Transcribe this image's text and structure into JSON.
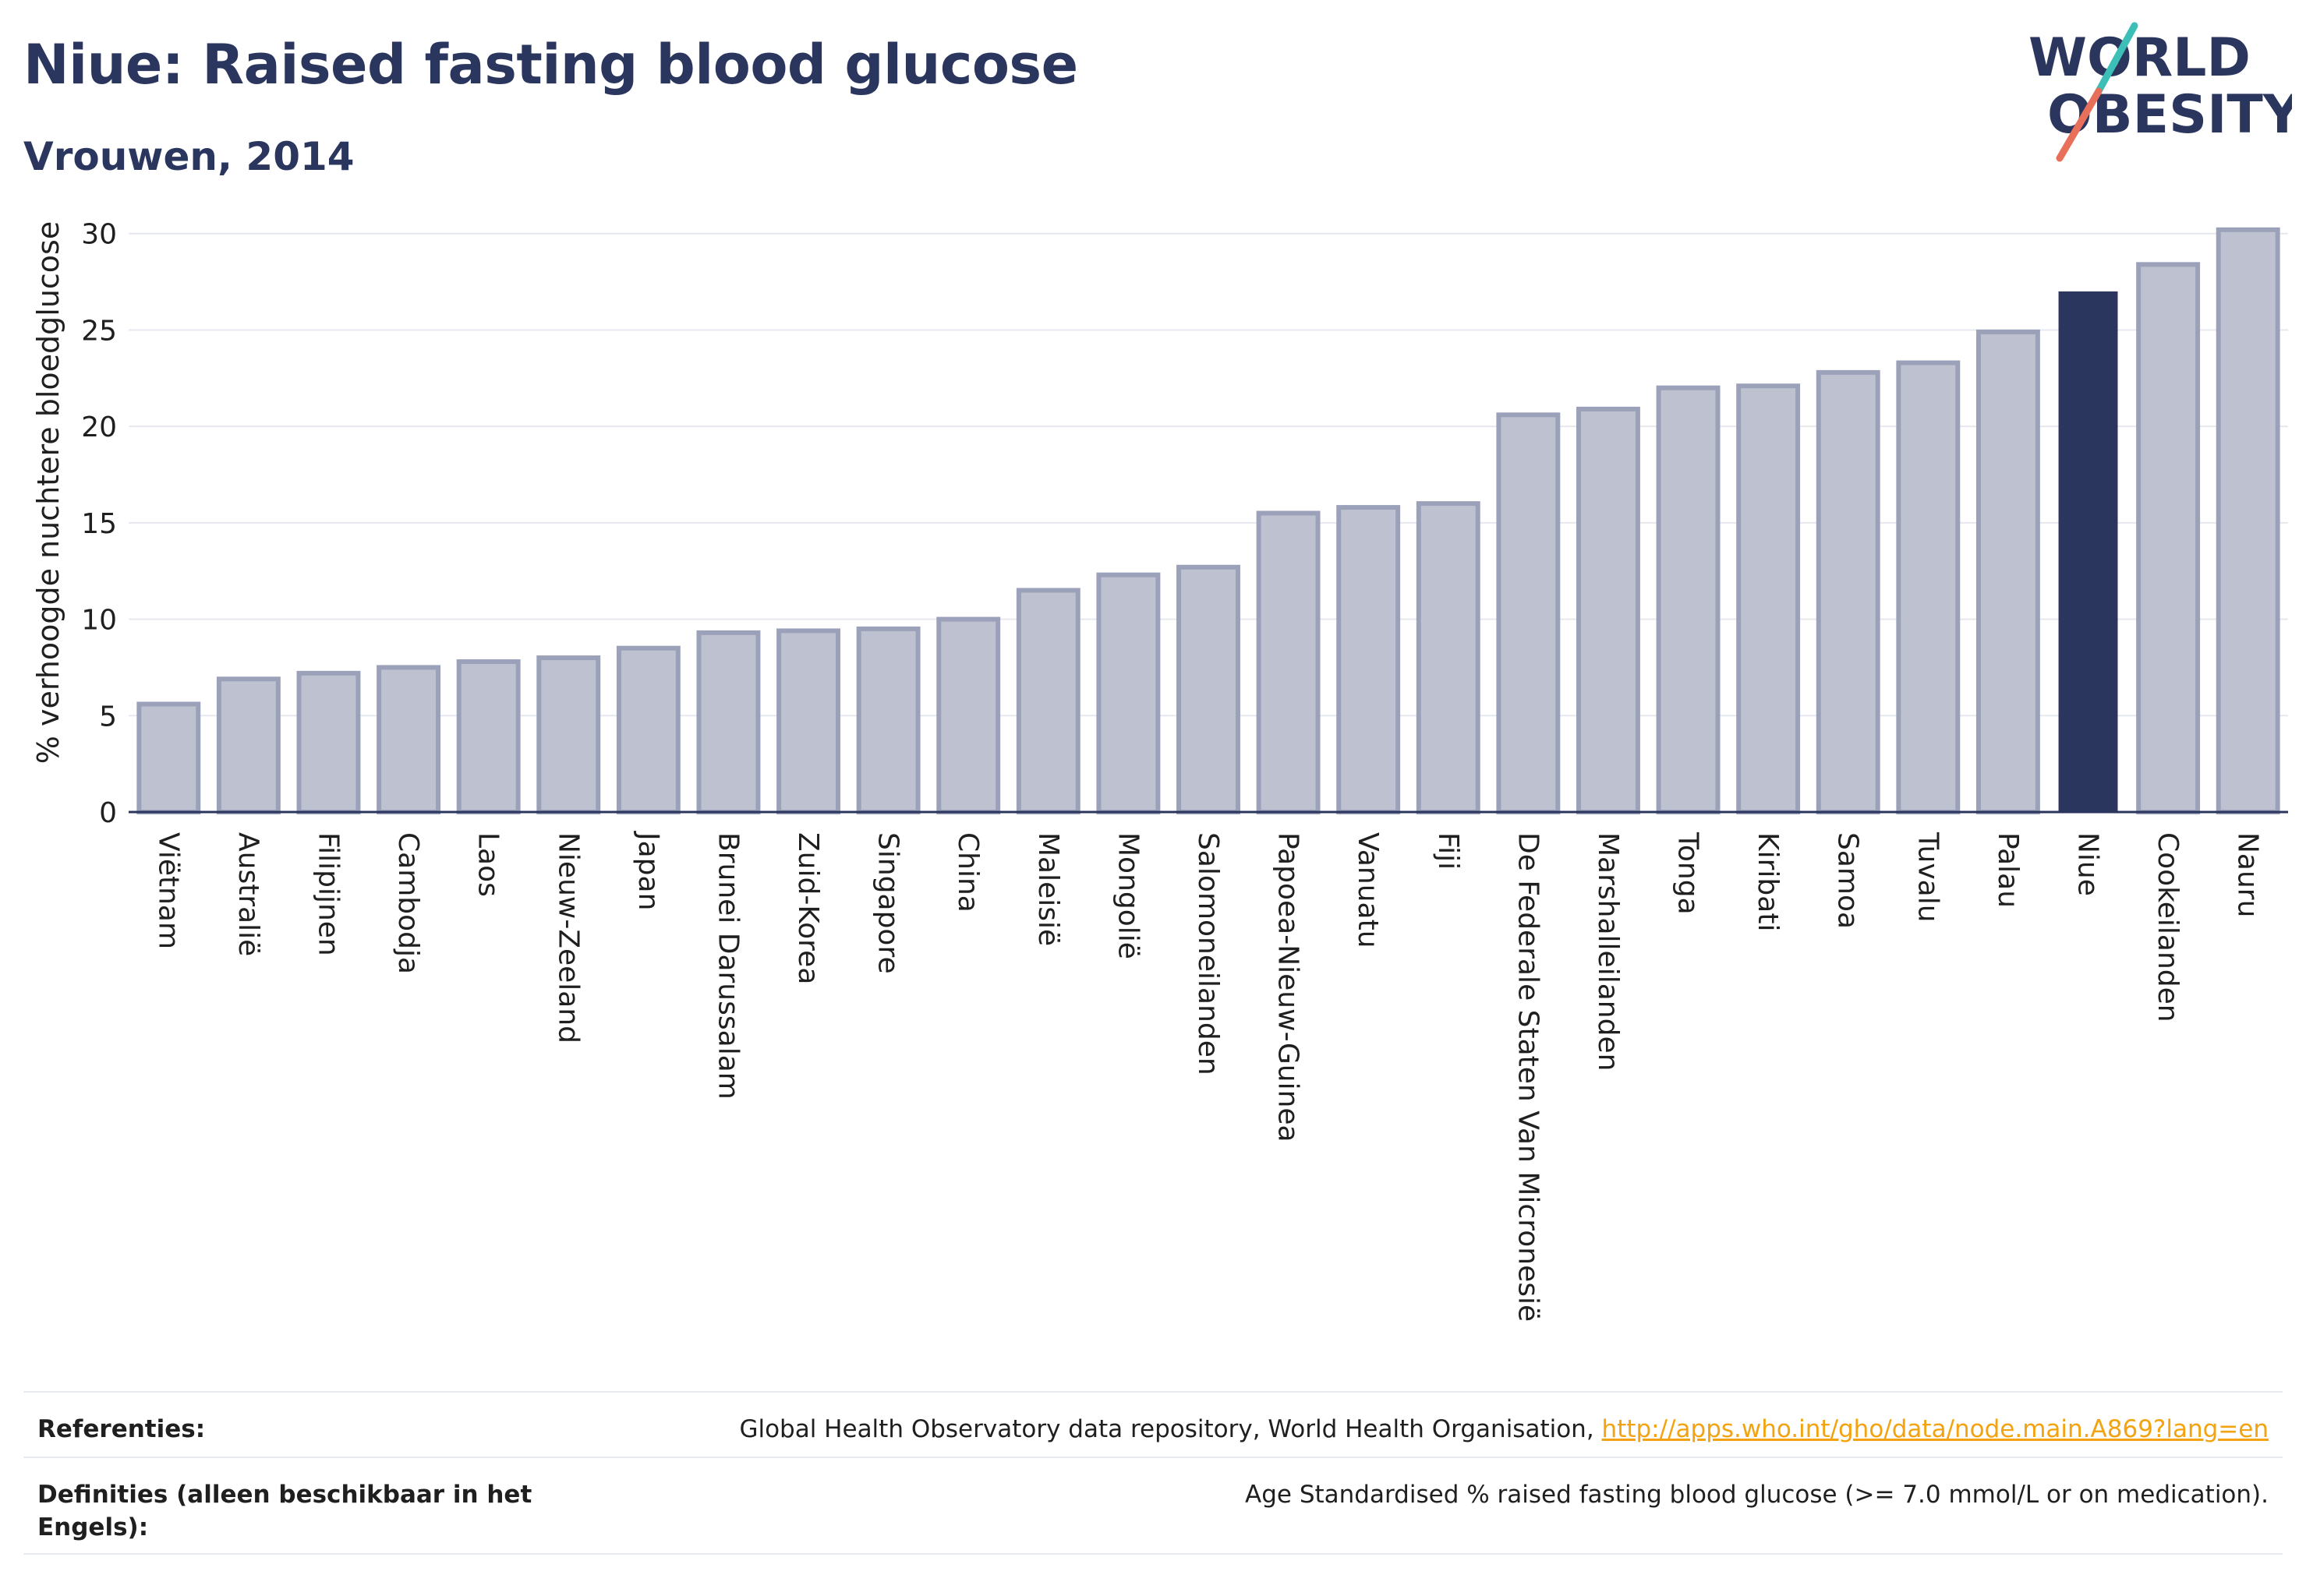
{
  "header": {
    "title": "Niue: Raised fasting blood glucose",
    "subtitle": "Vrouwen, 2014"
  },
  "logo": {
    "line1": "WORLD",
    "line2": "OBESITY",
    "colors": {
      "text": "#2b365f",
      "slash_teal": "#3bbfb6",
      "slash_coral": "#e8705a"
    }
  },
  "chart_data": {
    "type": "bar",
    "title": "Niue: Raised fasting blood glucose",
    "subtitle": "Vrouwen, 2014",
    "ylabel": "% verhoogde nuchtere bloedglucose",
    "xlabel": "",
    "ylim": [
      0,
      31
    ],
    "yticks": [
      0,
      5,
      10,
      15,
      20,
      25,
      30
    ],
    "grid": true,
    "highlight": "Niue",
    "colors": {
      "bar": "#bec2d0",
      "bar_border": "#9ba1b9",
      "highlight": "#2b365f",
      "grid": "#e6e8ef",
      "axis": "#2b365f"
    },
    "categories": [
      "Viëtnam",
      "Australië",
      "Filipijnen",
      "Cambodja",
      "Laos",
      "Nieuw-Zeeland",
      "Japan",
      "Brunei Darussalam",
      "Zuid-Korea",
      "Singapore",
      "China",
      "Maleisië",
      "Mongolië",
      "Salomoneilanden",
      "Papoea-Nieuw-Guinea",
      "Vanuatu",
      "Fiji",
      "De Federale Staten Van Micronesië",
      "Marshalleilanden",
      "Tonga",
      "Kiribati",
      "Samoa",
      "Tuvalu",
      "Palau",
      "Niue",
      "Cookeilanden",
      "Nauru"
    ],
    "values": [
      5.6,
      6.9,
      7.2,
      7.5,
      7.8,
      8.0,
      8.5,
      9.3,
      9.4,
      9.5,
      10.0,
      11.5,
      12.3,
      12.7,
      15.5,
      15.8,
      16.0,
      20.6,
      20.9,
      22.0,
      22.1,
      22.8,
      23.3,
      24.9,
      27.0,
      28.4,
      30.2
    ]
  },
  "references": {
    "ref_label": "Referenties:",
    "ref_text": "Global Health Observatory data repository, World Health Organisation, ",
    "ref_link": "http://apps.who.int/gho/data/node.main.A869?lang=en",
    "def_label": "Definities (alleen beschikbaar in het Engels):",
    "def_text": "Age Standardised % raised fasting blood glucose (>= 7.0 mmol/L or on medication)."
  }
}
